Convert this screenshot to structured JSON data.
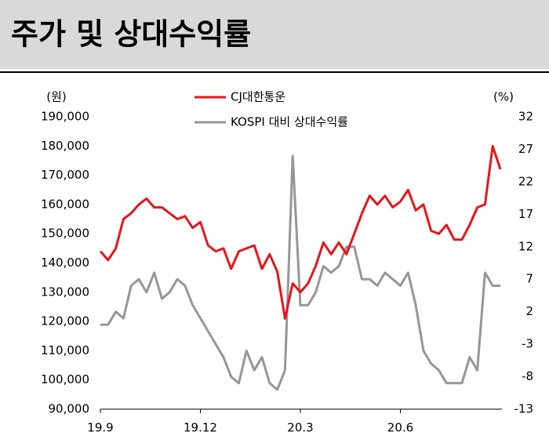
{
  "chart_data": {
    "type": "line",
    "title": "주가 및 상대수익률",
    "y_label": "(원)",
    "y2_label": "(%)",
    "categories": [
      "19.9",
      null,
      null,
      null,
      null,
      null,
      null,
      null,
      null,
      null,
      null,
      null,
      null,
      "19.12",
      null,
      null,
      null,
      null,
      null,
      null,
      null,
      null,
      null,
      null,
      null,
      null,
      "20.3",
      null,
      null,
      null,
      null,
      null,
      null,
      null,
      null,
      null,
      null,
      null,
      null,
      "20.6",
      null,
      null,
      null,
      null,
      null,
      null,
      null,
      null,
      null,
      null,
      null,
      null,
      null
    ],
    "series": [
      {
        "name": "CJ대한통운",
        "color": "#e3161b",
        "values": [
          144000,
          141000,
          145000,
          155000,
          157000,
          160000,
          162000,
          159000,
          159000,
          157000,
          155000,
          156000,
          152000,
          154000,
          146000,
          144000,
          145000,
          138000,
          144000,
          145000,
          146000,
          138000,
          143000,
          137000,
          121000,
          133000,
          130000,
          133000,
          139000,
          147000,
          143000,
          147000,
          143000,
          150000,
          157000,
          163000,
          160000,
          163000,
          159000,
          161000,
          165000,
          158000,
          160000,
          151000,
          150000,
          153000,
          148000,
          148000,
          153000,
          159000,
          160000,
          180000,
          172000
        ]
      },
      {
        "name": "KOSPI 대비 상대수익률",
        "color": "#969696",
        "axis": "y2",
        "values": [
          0,
          0,
          2,
          1,
          6,
          7,
          5,
          8,
          4,
          5,
          7,
          6,
          3,
          1,
          -1,
          -3,
          -5,
          -8,
          -9,
          -4,
          -7,
          -5,
          -9,
          -10,
          -7,
          26,
          3,
          3,
          5,
          9,
          8,
          9,
          12,
          12,
          7,
          7,
          6,
          8,
          7,
          6,
          8,
          3,
          -4,
          -6,
          -7,
          -9,
          -9,
          -9,
          -5,
          -7,
          8,
          6,
          6
        ]
      }
    ],
    "ylim": [
      90000,
      190000
    ],
    "yticks": [
      {
        "value": 90000,
        "label": "90,000"
      },
      {
        "value": 100000,
        "label": "100,000"
      },
      {
        "value": 110000,
        "label": "110,000"
      },
      {
        "value": 120000,
        "label": "120,000"
      },
      {
        "value": 130000,
        "label": "130,000"
      },
      {
        "value": 140000,
        "label": "140,000"
      },
      {
        "value": 150000,
        "label": "150,000"
      },
      {
        "value": 160000,
        "label": "160,000"
      },
      {
        "value": 170000,
        "label": "170,000"
      },
      {
        "value": 180000,
        "label": "180,000"
      },
      {
        "value": 190000,
        "label": "190,000"
      }
    ],
    "y2lim": [
      -13,
      32
    ],
    "y2ticks": [
      -13,
      -8,
      -3,
      2,
      7,
      12,
      17,
      22,
      27,
      32
    ]
  }
}
